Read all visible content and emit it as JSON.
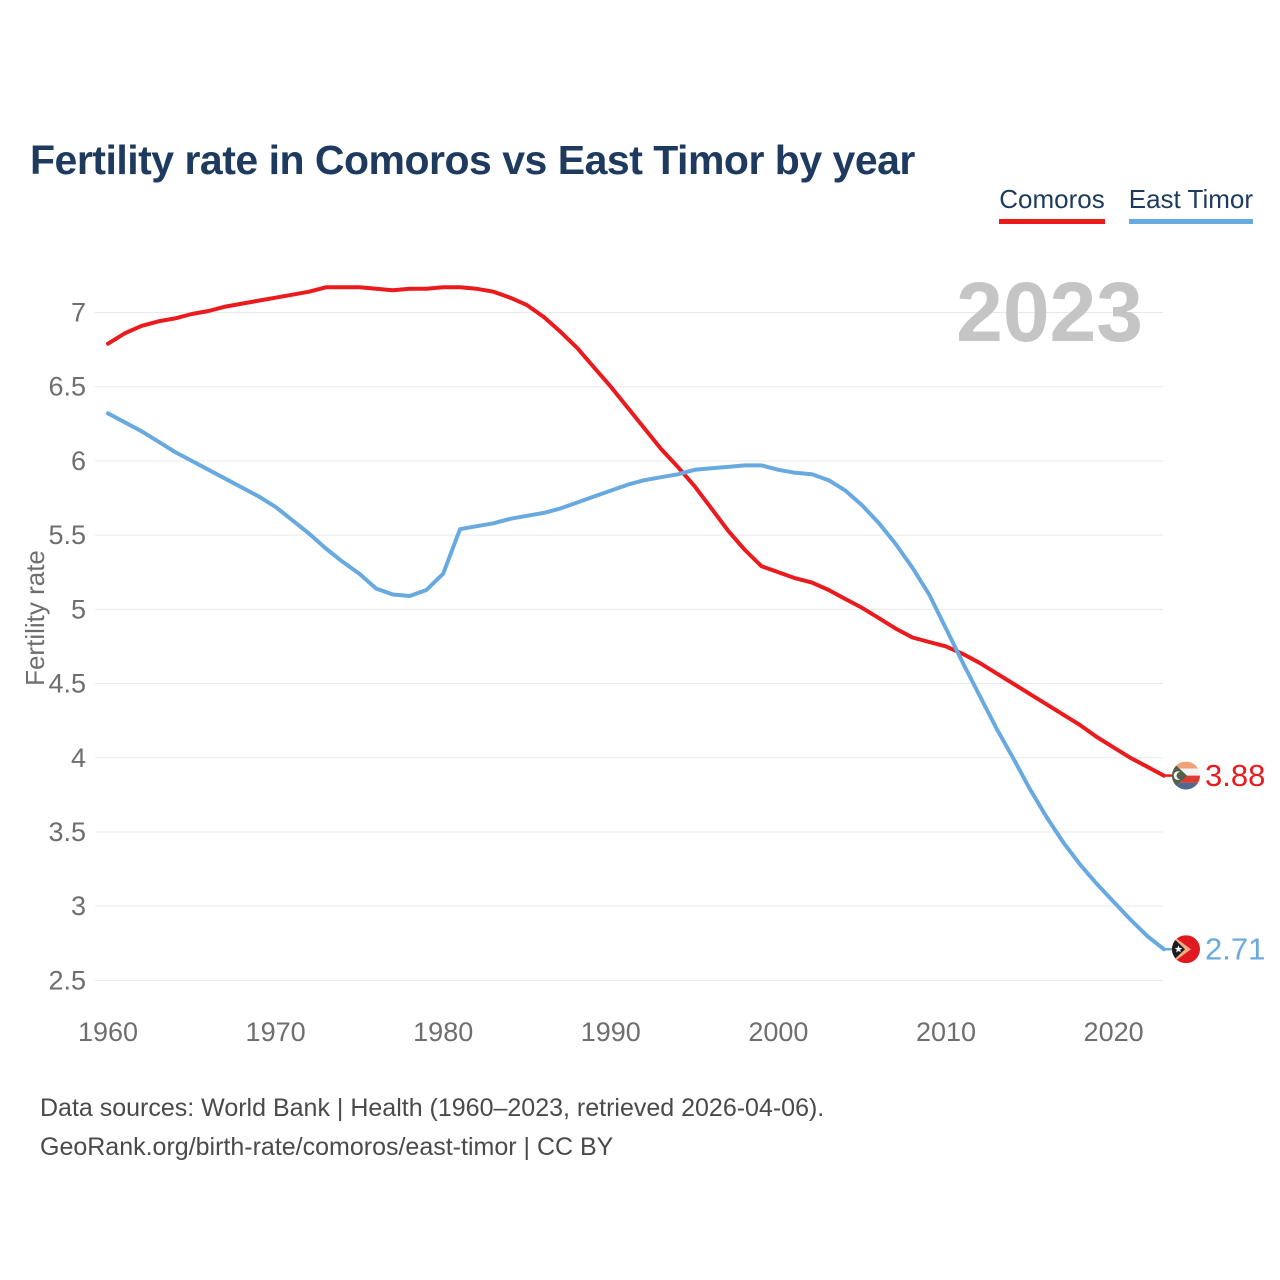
{
  "title": "Fertility rate in Comoros vs East Timor by year",
  "watermark": "2023",
  "colors": {
    "title": "#1e3a5f",
    "axis_text": "#6e6e6e",
    "gridline": "#e9e9e9",
    "watermark": "#c5c5c5",
    "footer_text": "#4a4a4a"
  },
  "footer": {
    "line1": "Data sources: World Bank | Health (1960–2023, retrieved 2026-04-06).",
    "line2": "GeoRank.org/birth-rate/comoros/east-timor | CC BY"
  },
  "chart_data": {
    "type": "line",
    "title": "Fertility rate in Comoros vs East Timor by year",
    "xlabel": "",
    "ylabel": "Fertility rate",
    "xlim": [
      1960,
      2023
    ],
    "ylim": [
      2.5,
      7.2
    ],
    "x_ticks": [
      1960,
      1970,
      1980,
      1990,
      2000,
      2010,
      2020
    ],
    "y_ticks": [
      7,
      6.5,
      6,
      5.5,
      5,
      4.5,
      4,
      3.5,
      3,
      2.5
    ],
    "grid": "horizontal",
    "legend_position": "top-right",
    "x": [
      1960,
      1961,
      1962,
      1963,
      1964,
      1965,
      1966,
      1967,
      1968,
      1969,
      1970,
      1971,
      1972,
      1973,
      1974,
      1975,
      1976,
      1977,
      1978,
      1979,
      1980,
      1981,
      1982,
      1983,
      1984,
      1985,
      1986,
      1987,
      1988,
      1989,
      1990,
      1991,
      1992,
      1993,
      1994,
      1995,
      1996,
      1997,
      1998,
      1999,
      2000,
      2001,
      2002,
      2003,
      2004,
      2005,
      2006,
      2007,
      2008,
      2009,
      2010,
      2011,
      2012,
      2013,
      2014,
      2015,
      2016,
      2017,
      2018,
      2019,
      2020,
      2021,
      2022,
      2023
    ],
    "series": [
      {
        "name": "Comoros",
        "color": "#ea1a1d",
        "flag": "comoros",
        "end_label": "3.88",
        "end_value": 3.88,
        "values": [
          6.79,
          6.86,
          6.91,
          6.94,
          6.96,
          6.99,
          7.01,
          7.04,
          7.06,
          7.08,
          7.1,
          7.12,
          7.14,
          7.17,
          7.17,
          7.17,
          7.16,
          7.15,
          7.16,
          7.16,
          7.17,
          7.17,
          7.16,
          7.14,
          7.1,
          7.05,
          6.97,
          6.87,
          6.76,
          6.63,
          6.5,
          6.36,
          6.22,
          6.08,
          5.96,
          5.83,
          5.68,
          5.53,
          5.4,
          5.29,
          5.25,
          5.21,
          5.18,
          5.13,
          5.07,
          5.01,
          4.94,
          4.87,
          4.81,
          4.78,
          4.75,
          4.7,
          4.64,
          4.57,
          4.5,
          4.43,
          4.36,
          4.29,
          4.22,
          4.14,
          4.07,
          4.0,
          3.94,
          3.88
        ]
      },
      {
        "name": "East Timor",
        "color": "#68a9e0",
        "flag": "east-timor",
        "end_label": "2.71",
        "end_value": 2.71,
        "values": [
          6.32,
          6.26,
          6.2,
          6.13,
          6.06,
          6.0,
          5.94,
          5.88,
          5.82,
          5.76,
          5.69,
          5.6,
          5.51,
          5.41,
          5.32,
          5.24,
          5.14,
          5.1,
          5.09,
          5.13,
          5.24,
          5.54,
          5.56,
          5.58,
          5.61,
          5.63,
          5.65,
          5.68,
          5.72,
          5.76,
          5.8,
          5.84,
          5.87,
          5.89,
          5.91,
          5.94,
          5.95,
          5.96,
          5.97,
          5.97,
          5.94,
          5.92,
          5.91,
          5.87,
          5.8,
          5.7,
          5.58,
          5.44,
          5.28,
          5.1,
          4.87,
          4.64,
          4.42,
          4.2,
          4.0,
          3.79,
          3.6,
          3.43,
          3.28,
          3.15,
          3.03,
          2.91,
          2.8,
          2.71
        ]
      }
    ]
  }
}
